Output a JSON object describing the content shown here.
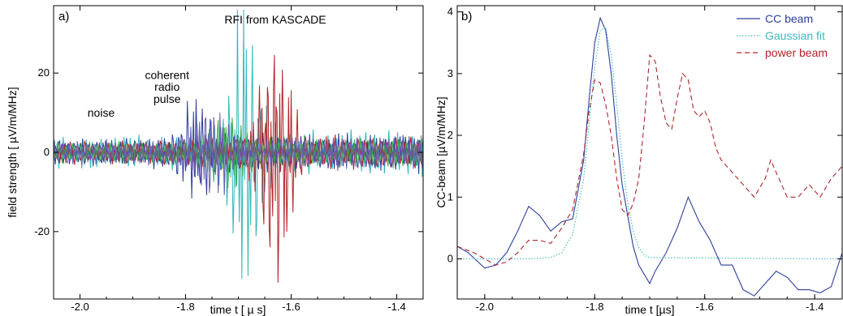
{
  "chart_data": [
    {
      "type": "line",
      "panel_label": "a)",
      "xlabel": "time t [ µ s]",
      "ylabel": "field strength [ µV/m/MHz]",
      "xlim": [
        -2.05,
        -1.35
      ],
      "ylim": [
        -37,
        37
      ],
      "x_ticks": [
        -2.0,
        -1.8,
        -1.6,
        -1.4
      ],
      "x_tick_labels": [
        "-2.0",
        "-1.8",
        "-1.6",
        "-1.4"
      ],
      "y_ticks": [
        -20,
        0,
        20
      ],
      "y_tick_labels": [
        "-20",
        "0",
        "20"
      ],
      "annotations": [
        {
          "text": "noise",
          "x": -1.96,
          "y": 9
        },
        {
          "text": "coherent",
          "x": -1.835,
          "y": 18.5
        },
        {
          "text": "radio",
          "x": -1.835,
          "y": 15.5
        },
        {
          "text": "pulse",
          "x": -1.835,
          "y": 12.5
        },
        {
          "text": "RFI from KASCADE",
          "x": -1.63,
          "y": 32.5
        }
      ],
      "series": [
        {
          "color": "#34b8b8",
          "amplitude": 4.5,
          "spike_x": -1.69,
          "spike_amp": 34
        },
        {
          "color": "#2e3f9a",
          "amplitude": 4.0,
          "spike_x": -1.78,
          "spike_amp": 10
        },
        {
          "color": "#b0242a",
          "amplitude": 3.5,
          "spike_x": -1.63,
          "spike_amp": 28
        },
        {
          "color": "#3aa84a",
          "amplitude": 3.0,
          "spike_x": -1.72,
          "spike_amp": 8
        },
        {
          "color": "#6a5ab0",
          "amplitude": 3.5,
          "spike_x": -1.75,
          "spike_amp": 9
        }
      ]
    },
    {
      "type": "line",
      "panel_label": "b)",
      "xlabel": "time t [µs]",
      "ylabel": "CC-beam [µV/m/MHz]",
      "xlim": [
        -2.05,
        -1.35
      ],
      "ylim": [
        -0.65,
        4.1
      ],
      "x_ticks": [
        -2.0,
        -1.8,
        -1.6,
        -1.4
      ],
      "x_tick_labels": [
        "-2.0",
        "-1.8",
        "-1.6",
        "-1.4"
      ],
      "y_ticks": [
        0,
        1,
        2,
        3,
        4
      ],
      "y_tick_labels": [
        "0",
        "1",
        "2",
        "3",
        "4"
      ],
      "legend_position": "top-right",
      "series": [
        {
          "name": "CC beam",
          "color": "#2e3f9a",
          "style": "solid",
          "x": [
            -2.05,
            -2.03,
            -2.0,
            -1.98,
            -1.96,
            -1.94,
            -1.92,
            -1.9,
            -1.88,
            -1.86,
            -1.84,
            -1.82,
            -1.81,
            -1.8,
            -1.79,
            -1.78,
            -1.77,
            -1.76,
            -1.75,
            -1.74,
            -1.73,
            -1.72,
            -1.7,
            -1.69,
            -1.67,
            -1.65,
            -1.63,
            -1.61,
            -1.59,
            -1.57,
            -1.55,
            -1.53,
            -1.51,
            -1.49,
            -1.47,
            -1.45,
            -1.43,
            -1.41,
            -1.39,
            -1.37,
            -1.35
          ],
          "y": [
            0.2,
            0.1,
            -0.15,
            -0.1,
            0.1,
            0.45,
            0.85,
            0.7,
            0.45,
            0.6,
            0.65,
            1.6,
            2.6,
            3.5,
            3.9,
            3.7,
            3.0,
            2.0,
            1.2,
            0.7,
            0.2,
            -0.1,
            -0.4,
            -0.2,
            0.1,
            0.5,
            1.0,
            0.6,
            0.3,
            -0.1,
            -0.1,
            -0.5,
            -0.6,
            -0.4,
            -0.2,
            -0.3,
            -0.5,
            -0.5,
            -0.55,
            -0.45,
            0.1
          ]
        },
        {
          "name": "Gaussian fit",
          "color": "#3cb9c0",
          "style": "dotted",
          "x": [
            -2.05,
            -1.92,
            -1.88,
            -1.86,
            -1.84,
            -1.82,
            -1.81,
            -1.8,
            -1.79,
            -1.78,
            -1.77,
            -1.76,
            -1.75,
            -1.74,
            -1.73,
            -1.72,
            -1.71,
            -1.7,
            -1.35
          ],
          "y": [
            0.0,
            0.0,
            0.02,
            0.1,
            0.4,
            1.3,
            2.2,
            3.1,
            3.7,
            3.75,
            3.3,
            2.5,
            1.6,
            0.9,
            0.45,
            0.18,
            0.06,
            0.02,
            0.0
          ]
        },
        {
          "name": "power beam",
          "color": "#b0242a",
          "style": "dashed",
          "x": [
            -2.05,
            -2.02,
            -2.0,
            -1.98,
            -1.96,
            -1.94,
            -1.92,
            -1.9,
            -1.88,
            -1.86,
            -1.84,
            -1.82,
            -1.81,
            -1.8,
            -1.79,
            -1.78,
            -1.77,
            -1.76,
            -1.75,
            -1.74,
            -1.73,
            -1.72,
            -1.71,
            -1.7,
            -1.69,
            -1.68,
            -1.67,
            -1.66,
            -1.65,
            -1.64,
            -1.63,
            -1.62,
            -1.61,
            -1.6,
            -1.59,
            -1.58,
            -1.57,
            -1.56,
            -1.55,
            -1.53,
            -1.51,
            -1.49,
            -1.48,
            -1.47,
            -1.45,
            -1.43,
            -1.41,
            -1.39,
            -1.37,
            -1.35
          ],
          "y": [
            0.2,
            0.1,
            0.0,
            -0.1,
            -0.05,
            0.1,
            0.3,
            0.3,
            0.25,
            0.5,
            0.8,
            1.7,
            2.4,
            2.9,
            2.85,
            2.5,
            2.0,
            1.3,
            0.8,
            0.7,
            0.9,
            1.3,
            2.2,
            3.3,
            3.2,
            2.6,
            2.2,
            2.1,
            2.6,
            3.0,
            2.9,
            2.4,
            2.3,
            2.4,
            2.2,
            1.8,
            1.6,
            1.5,
            1.4,
            1.2,
            1.0,
            1.3,
            1.6,
            1.4,
            1.0,
            1.0,
            1.2,
            1.0,
            1.3,
            1.5
          ]
        }
      ]
    }
  ]
}
